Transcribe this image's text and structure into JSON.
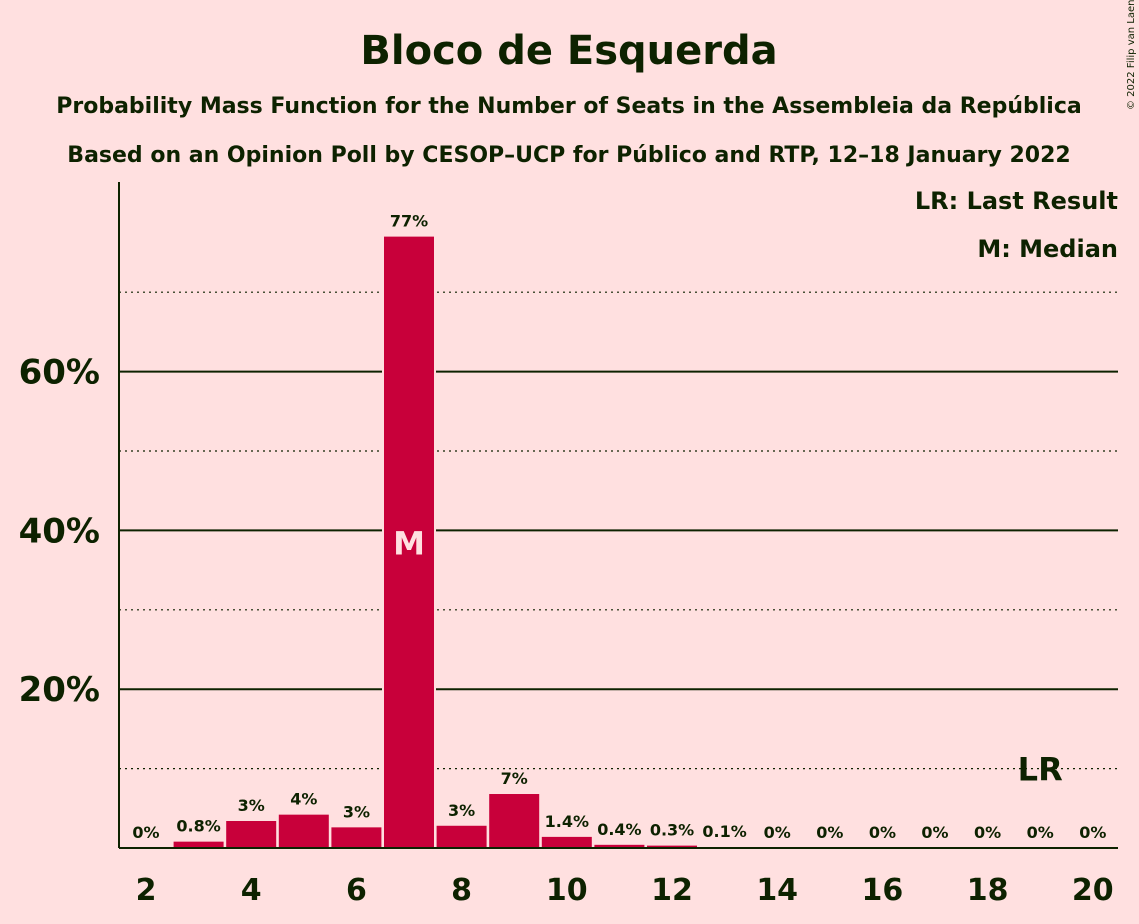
{
  "chart_data": {
    "type": "bar",
    "title": "Bloco de Esquerda",
    "subtitle1": "Probability Mass Function for the Number of Seats in the Assembleia da República",
    "subtitle2": "Based on an Opinion Poll by CESOP–UCP for Público and RTP, 12–18 January 2022",
    "copyright": "© 2022 Filip van Laenen",
    "legend": {
      "last_result": "LR: Last Result",
      "median": "M: Median"
    },
    "xlabel": "",
    "ylabel": "",
    "ylim": [
      0,
      80
    ],
    "y_ticks": [
      20,
      40,
      60
    ],
    "y_tick_labels": [
      "20%",
      "40%",
      "60%"
    ],
    "y_minor_gridlines": [
      10,
      30,
      50,
      70
    ],
    "x_ticks": [
      2,
      4,
      6,
      8,
      10,
      12,
      14,
      16,
      18,
      20
    ],
    "categories": [
      2,
      3,
      4,
      5,
      6,
      7,
      8,
      9,
      10,
      11,
      12,
      13,
      14,
      15,
      16,
      17,
      18,
      19,
      20
    ],
    "values": [
      0,
      0.8,
      3.4,
      4.2,
      2.6,
      77,
      2.8,
      6.8,
      1.4,
      0.4,
      0.3,
      0.1,
      0,
      0,
      0,
      0,
      0,
      0,
      0
    ],
    "labels": [
      "0%",
      "0.8%",
      "3%",
      "4%",
      "3%",
      "77%",
      "3%",
      "7%",
      "1.4%",
      "0.4%",
      "0.3%",
      "0.1%",
      "0%",
      "0%",
      "0%",
      "0%",
      "0%",
      "0%",
      "0%"
    ],
    "median_seat": 7,
    "median_marker": "M",
    "last_result_seat": 19,
    "last_result_marker": "LR",
    "bar_color": "#C8003A",
    "text_color": "#0D2200",
    "background": "#FFE0E0",
    "grid": true
  }
}
